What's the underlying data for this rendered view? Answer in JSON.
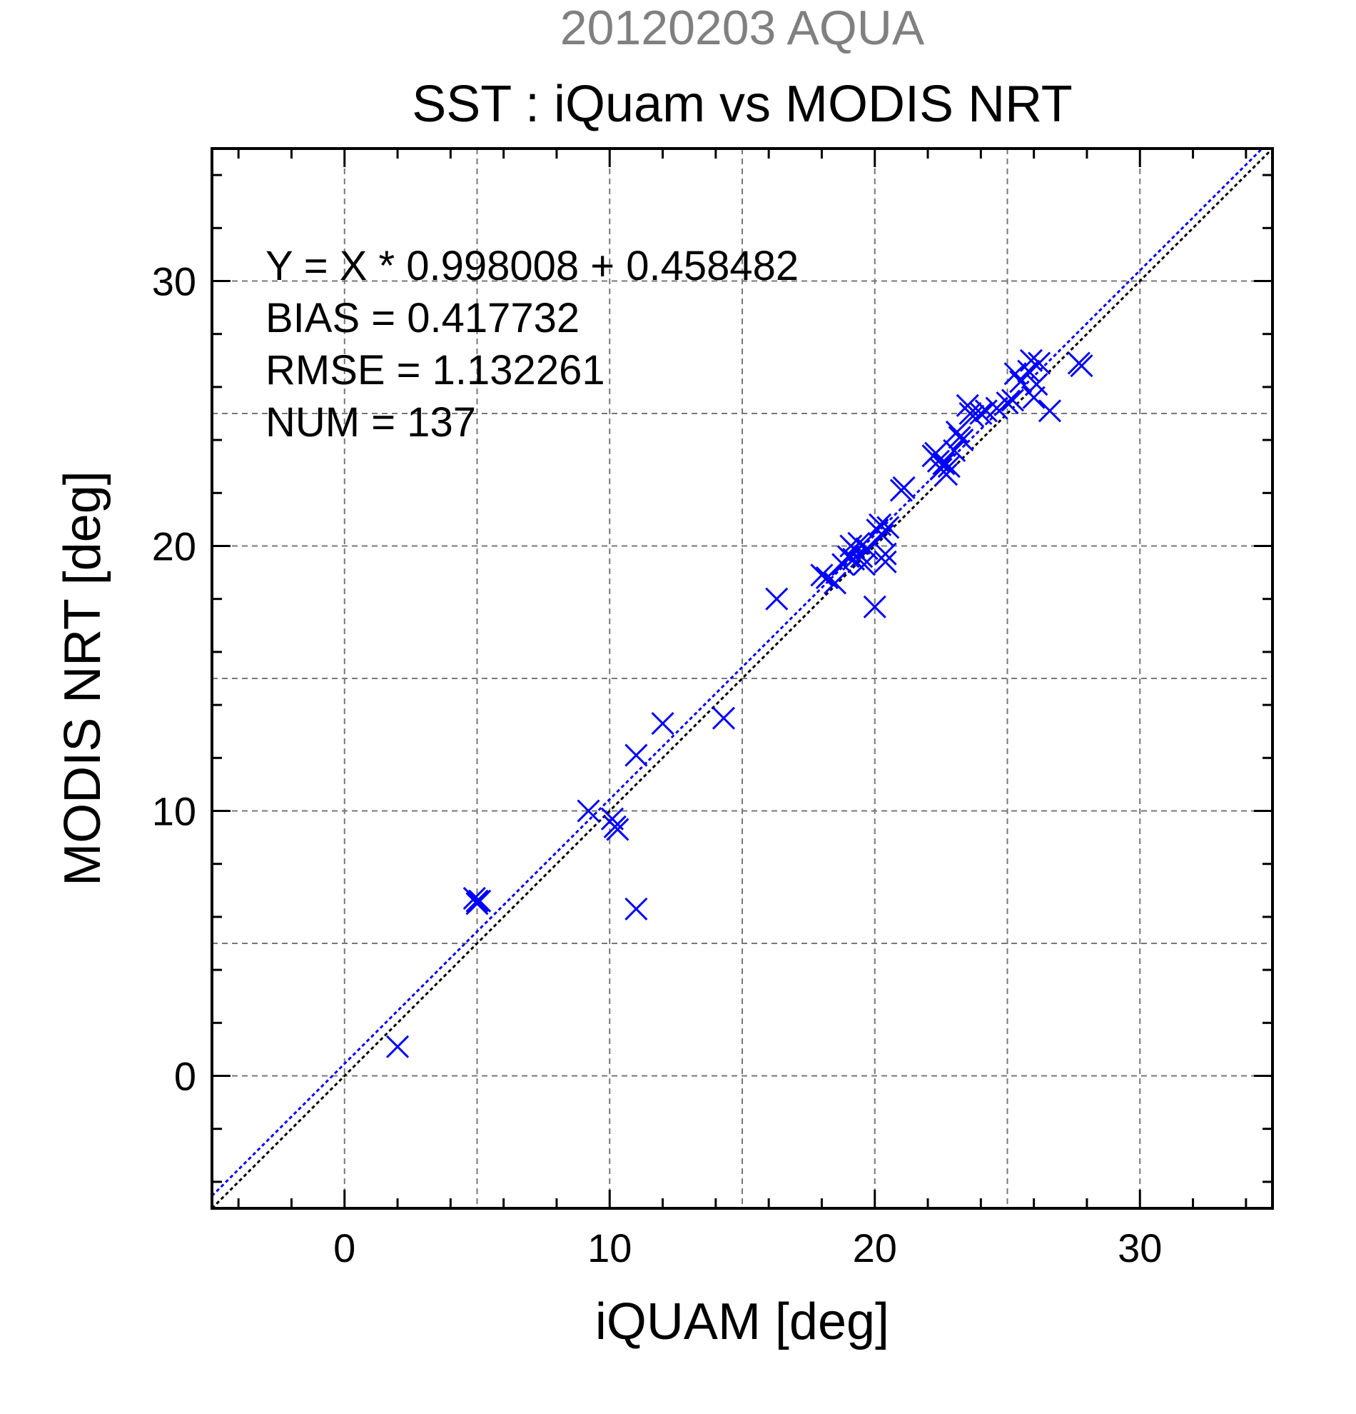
{
  "chart_data": {
    "type": "scatter",
    "title": "SST : iQuam vs MODIS NRT",
    "subtitle": "20120203 AQUA",
    "xlabel": "iQUAM [deg]",
    "ylabel": "MODIS NRT [deg]",
    "xlim": [
      -5,
      35
    ],
    "ylim": [
      -5,
      35
    ],
    "x_ticks": [
      0,
      10,
      20,
      30
    ],
    "y_ticks": [
      0,
      10,
      20,
      30
    ],
    "grid": true,
    "colors": {
      "points": "#0000ff",
      "fit_line": "#0000ff",
      "identity_line": "#000000",
      "subtitle": "#808080"
    },
    "annotations": [
      "Y = X * 0.998008 + 0.458482",
      "BIAS = 0.417732",
      "RMSE = 1.132261",
      "NUM = 137"
    ],
    "fit": {
      "slope": 0.998008,
      "intercept": 0.458482
    },
    "points": [
      [
        2.0,
        1.1
      ],
      [
        4.9,
        6.7
      ],
      [
        5.0,
        6.5
      ],
      [
        5.1,
        6.6
      ],
      [
        5.0,
        6.6
      ],
      [
        9.2,
        10.0
      ],
      [
        10.1,
        9.7
      ],
      [
        10.2,
        9.4
      ],
      [
        10.3,
        9.3
      ],
      [
        11.0,
        6.3
      ],
      [
        11.0,
        12.1
      ],
      [
        12.0,
        13.3
      ],
      [
        14.3,
        13.5
      ],
      [
        16.3,
        18.0
      ],
      [
        18.0,
        18.9
      ],
      [
        18.2,
        18.8
      ],
      [
        18.5,
        18.6
      ],
      [
        18.8,
        19.3
      ],
      [
        19.0,
        19.6
      ],
      [
        19.1,
        20.0
      ],
      [
        19.2,
        19.5
      ],
      [
        19.3,
        19.8
      ],
      [
        19.4,
        20.1
      ],
      [
        19.5,
        19.6
      ],
      [
        19.6,
        19.3
      ],
      [
        19.7,
        19.9
      ],
      [
        20.0,
        17.7
      ],
      [
        20.1,
        20.6
      ],
      [
        20.2,
        20.8
      ],
      [
        20.3,
        20.4
      ],
      [
        20.4,
        19.7
      ],
      [
        20.5,
        20.7
      ],
      [
        20.4,
        19.4
      ],
      [
        21.0,
        22.1
      ],
      [
        21.1,
        22.2
      ],
      [
        22.2,
        23.4
      ],
      [
        22.3,
        23.5
      ],
      [
        22.4,
        23.2
      ],
      [
        22.5,
        22.9
      ],
      [
        22.6,
        23.1
      ],
      [
        22.7,
        22.7
      ],
      [
        22.8,
        23.0
      ],
      [
        23.0,
        23.6
      ],
      [
        23.1,
        24.3
      ],
      [
        23.2,
        24.1
      ],
      [
        23.3,
        24.0
      ],
      [
        23.5,
        25.3
      ],
      [
        23.6,
        25.0
      ],
      [
        23.7,
        24.9
      ],
      [
        24.0,
        25.0
      ],
      [
        24.2,
        25.1
      ],
      [
        24.6,
        25.2
      ],
      [
        25.0,
        25.4
      ],
      [
        25.2,
        25.5
      ],
      [
        25.3,
        26.5
      ],
      [
        25.5,
        26.2
      ],
      [
        25.8,
        26.6
      ],
      [
        25.9,
        27.0
      ],
      [
        26.0,
        25.6
      ],
      [
        26.1,
        26.1
      ],
      [
        26.2,
        26.9
      ],
      [
        26.6,
        25.1
      ],
      [
        27.7,
        26.9
      ],
      [
        27.8,
        26.8
      ]
    ]
  }
}
